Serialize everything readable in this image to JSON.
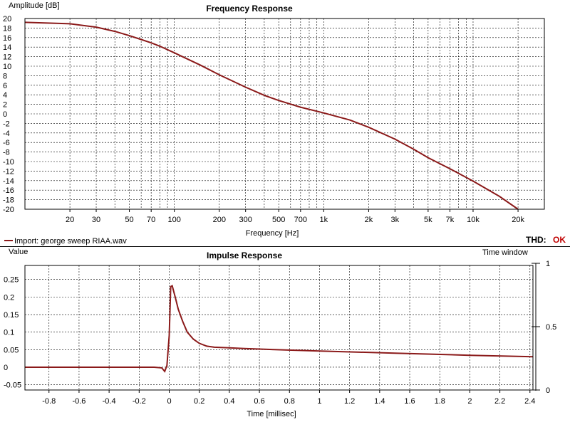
{
  "legend": {
    "label": "Import: george sweep RIAA.wav",
    "color": "#8b1a1a"
  },
  "thd": {
    "label": "THD:",
    "status": "OK",
    "status_color": "#c00000"
  },
  "chart_data": [
    {
      "type": "line",
      "title": "Frequency Response",
      "xlabel": "Frequency [Hz]",
      "ylabel": "Amplitude [dB]",
      "xscale": "log",
      "xlim": [
        10,
        30000
      ],
      "ylim": [
        -20,
        20
      ],
      "grid": true,
      "xticks": [
        {
          "v": 20,
          "t": "20"
        },
        {
          "v": 30,
          "t": "30"
        },
        {
          "v": 50,
          "t": "50"
        },
        {
          "v": 70,
          "t": "70"
        },
        {
          "v": 100,
          "t": "100"
        },
        {
          "v": 200,
          "t": "200"
        },
        {
          "v": 300,
          "t": "300"
        },
        {
          "v": 500,
          "t": "500"
        },
        {
          "v": 700,
          "t": "700"
        },
        {
          "v": 1000,
          "t": "1k"
        },
        {
          "v": 2000,
          "t": "2k"
        },
        {
          "v": 3000,
          "t": "3k"
        },
        {
          "v": 5000,
          "t": "5k"
        },
        {
          "v": 7000,
          "t": "7k"
        },
        {
          "v": 10000,
          "t": "10k"
        },
        {
          "v": 20000,
          "t": "20k"
        }
      ],
      "yticks": [
        20,
        18,
        16,
        14,
        12,
        10,
        8,
        6,
        4,
        2,
        0,
        -2,
        -4,
        -6,
        -8,
        -10,
        -12,
        -14,
        -16,
        -18,
        -20
      ],
      "series": [
        {
          "name": "Import: george sweep RIAA.wav",
          "color": "#8b1a1a",
          "x": [
            10,
            20,
            30,
            40,
            50,
            60,
            70,
            80,
            100,
            150,
            200,
            300,
            400,
            500,
            700,
            1000,
            1500,
            2000,
            3000,
            4000,
            5000,
            7000,
            10000,
            15000,
            20000
          ],
          "y": [
            19.2,
            18.9,
            18.2,
            17.3,
            16.4,
            15.6,
            14.9,
            14.2,
            12.8,
            10.2,
            8.2,
            5.6,
            3.9,
            2.8,
            1.4,
            0.2,
            -1.3,
            -2.8,
            -5.3,
            -7.4,
            -9.2,
            -11.5,
            -14.1,
            -17.3,
            -20.0
          ]
        }
      ]
    },
    {
      "type": "line",
      "title": "Impulse Response",
      "xlabel": "Time [millisec]",
      "ylabel": "Value",
      "y2label": "Time window",
      "xlim": [
        -0.96,
        2.42
      ],
      "ylim": [
        -0.065,
        0.29
      ],
      "y2lim": [
        0,
        1
      ],
      "grid": true,
      "xticks": [
        -0.8,
        -0.6,
        -0.4,
        -0.2,
        0,
        0.2,
        0.4,
        0.6,
        0.8,
        1,
        1.2,
        1.4,
        1.6,
        1.8,
        2,
        2.2,
        2.4
      ],
      "yticks": [
        0.25,
        0.2,
        0.15,
        0.1,
        0.05,
        0,
        -0.05
      ],
      "y2ticks": [
        1,
        0.5,
        0
      ],
      "series": [
        {
          "name": "Import: george sweep RIAA.wav",
          "color": "#8b1a1a",
          "x": [
            -0.96,
            -0.1,
            -0.05,
            -0.03,
            -0.015,
            0,
            0.01,
            0.02,
            0.04,
            0.06,
            0.09,
            0.12,
            0.16,
            0.2,
            0.25,
            0.3,
            0.4,
            0.5,
            0.7,
            1.0,
            1.5,
            2.0,
            2.42
          ],
          "y": [
            0,
            0,
            -0.002,
            -0.012,
            0.005,
            0.09,
            0.23,
            0.232,
            0.2,
            0.165,
            0.13,
            0.1,
            0.08,
            0.068,
            0.06,
            0.057,
            0.055,
            0.053,
            0.05,
            0.046,
            0.04,
            0.034,
            0.03
          ]
        }
      ]
    }
  ]
}
